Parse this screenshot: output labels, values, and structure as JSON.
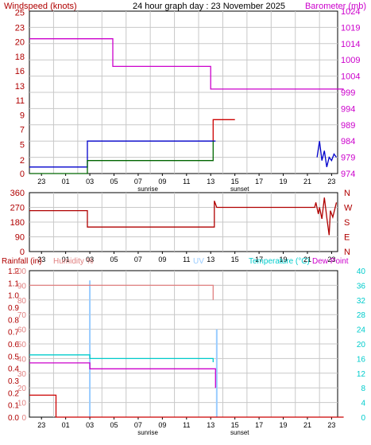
{
  "header": {
    "title": "24 hour graph day : 23 November 2025",
    "left_label": "Windspeed (knots)",
    "right_label": "Barometer (mb)"
  },
  "x_ticks": [
    "23",
    "01",
    "03",
    "05",
    "07",
    "09",
    "11",
    "13",
    "15",
    "17",
    "19",
    "21",
    "23"
  ],
  "sunrise_label": "sunrise",
  "sunset_label": "sunset",
  "colors": {
    "windspeed_label": "#b00000",
    "barometer": "#cc00cc",
    "wind_avg": "#006600",
    "wind_gust": "#cc0000",
    "wind_blue": "#0000cc",
    "wind_dir": "#b00000",
    "rain": "#cc0000",
    "humidity": "#e08080",
    "uv": "#99ccff",
    "temperature": "#00cccc",
    "dew_point": "#cc00cc",
    "axis_black": "#000000",
    "grid": "#c8c8c8"
  },
  "chart_data": [
    {
      "type": "line",
      "name": "wind-barometer",
      "left_axis": {
        "title": "Windspeed (knots)",
        "ticks": [
          "0",
          "2",
          "5",
          "7",
          "9",
          "11",
          "13",
          "16",
          "18",
          "20",
          "23",
          "25"
        ]
      },
      "right_axis": {
        "title": "Barometer (mb)",
        "ticks": [
          "974",
          "979",
          "984",
          "989",
          "994",
          "999",
          "1004",
          "1009",
          "1014",
          "1019",
          "1024"
        ]
      },
      "xlim": [
        22,
        47.5
      ],
      "left_ylim": [
        0,
        25
      ],
      "right_ylim": [
        974,
        1024
      ],
      "series": [
        {
          "key": "barometer",
          "axis": "right",
          "points": [
            [
              22,
              1015.5
            ],
            [
              28.9,
              1015.5
            ],
            [
              28.9,
              1007
            ],
            [
              37,
              1007
            ],
            [
              37,
              1000
            ],
            [
              48,
              1000
            ]
          ]
        },
        {
          "key": "wind_gust",
          "axis": "left",
          "points": [
            [
              37.2,
              5
            ],
            [
              37.2,
              8.3
            ],
            [
              39,
              8.3
            ]
          ]
        },
        {
          "key": "wind_blue",
          "axis": "left",
          "points": [
            [
              22,
              1
            ],
            [
              26.8,
              1
            ],
            [
              26.8,
              5
            ],
            [
              37.4,
              5
            ]
          ]
        },
        {
          "key": "wind_avg",
          "axis": "left",
          "points": [
            [
              22,
              0
            ],
            [
              26.8,
              0
            ],
            [
              26.8,
              2
            ],
            [
              37.2,
              2
            ],
            [
              37.2,
              5
            ]
          ]
        }
      ]
    },
    {
      "type": "line",
      "name": "wind-direction",
      "left_axis": {
        "ticks": [
          "0",
          "90",
          "180",
          "270",
          "360"
        ]
      },
      "right_axis": {
        "ticks": [
          "N",
          "E",
          "S",
          "W",
          "N"
        ]
      },
      "xlim": [
        22,
        47.5
      ],
      "ylim": [
        0,
        360
      ],
      "series": [
        {
          "key": "wind_dir",
          "points": [
            [
              22,
              250
            ],
            [
              26.8,
              250
            ],
            [
              26.8,
              150
            ],
            [
              37.3,
              150
            ],
            [
              37.3,
              310
            ],
            [
              37.5,
              270
            ],
            [
              45.6,
              270
            ],
            [
              45.7,
              300
            ],
            [
              45.9,
              230
            ],
            [
              46.0,
              270
            ],
            [
              46.2,
              200
            ],
            [
              46.4,
              330
            ],
            [
              46.6,
              210
            ],
            [
              46.8,
              100
            ],
            [
              46.9,
              250
            ],
            [
              47.1,
              210
            ],
            [
              47.4,
              300
            ]
          ]
        }
      ]
    },
    {
      "type": "line",
      "name": "rain-humidity-uv-temperature",
      "top_labels": [
        "Rainfall (in)",
        "Humidity %",
        "UV",
        "Temperature (°C)",
        "Dew Point"
      ],
      "rain_axis": {
        "ticks": [
          "0.0",
          "0.1",
          "0.2",
          "0.3",
          "0.4",
          "0.5",
          "0.6",
          "0.7",
          "0.8",
          "0.9",
          "1.0",
          "1.1",
          "1.2"
        ]
      },
      "humidity_axis": {
        "ticks": [
          "0",
          "10",
          "20",
          "30",
          "40",
          "50",
          "60",
          "70",
          "80",
          "90",
          "100"
        ]
      },
      "temperature_axis": {
        "ticks": [
          "0",
          "4",
          "8",
          "12",
          "16",
          "20",
          "24",
          "28",
          "32",
          "36",
          "40"
        ]
      },
      "xlim": [
        22,
        47.5
      ],
      "rain_ylim": [
        0,
        1.2
      ],
      "humidity_ylim": [
        0,
        100
      ],
      "temperature_ylim": [
        0,
        40
      ],
      "series": [
        {
          "key": "rain",
          "axis": "rain",
          "points": [
            [
              22,
              0.18
            ],
            [
              24.2,
              0.18
            ],
            [
              24.2,
              0
            ],
            [
              48,
              0
            ]
          ]
        },
        {
          "key": "humidity",
          "axis": "humidity",
          "points": [
            [
              22,
              90
            ],
            [
              37.2,
              90
            ],
            [
              37.2,
              80
            ]
          ]
        },
        {
          "key": "temperature",
          "axis": "temperature",
          "points": [
            [
              22,
              17
            ],
            [
              27,
              17
            ],
            [
              27,
              16
            ],
            [
              37.2,
              16
            ],
            [
              37.2,
              15
            ]
          ]
        },
        {
          "key": "dew_point",
          "axis": "temperature",
          "points": [
            [
              22,
              14.8
            ],
            [
              27,
              14.8
            ],
            [
              27,
              13.2
            ],
            [
              37.4,
              13.2
            ],
            [
              37.4,
              8
            ]
          ]
        }
      ],
      "uv_spikes": [
        {
          "x": 27,
          "uv": 11.2
        },
        {
          "x": 37.5,
          "uv": 7.2
        }
      ]
    }
  ]
}
